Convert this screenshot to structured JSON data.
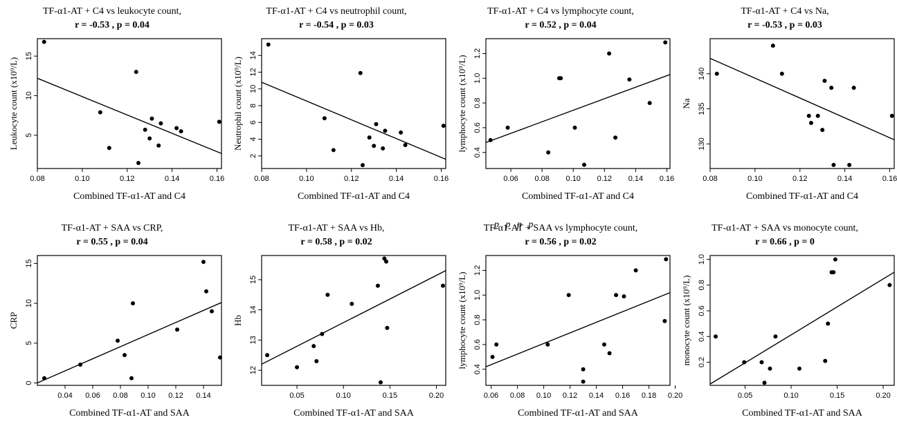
{
  "stray_text": "p p p p",
  "chart_data": [
    {
      "type": "scatter",
      "title": "TF-α1-AT + C4 vs leukocyte count,",
      "subtitle": "r = -0.53 , p = 0.04",
      "xlabel": "Combined TF-α1-AT and C4",
      "ylabel": "Leukocyte count (x10⁹/L)",
      "xlim": [
        0.08,
        0.162
      ],
      "ylim": [
        0.8,
        17.2
      ],
      "xticks": [
        0.08,
        0.1,
        0.12,
        0.14,
        0.16
      ],
      "xtick_labels": [
        "0.08",
        "0.10",
        "0.12",
        "0.14",
        "0.16"
      ],
      "yticks": [
        5,
        10,
        15
      ],
      "ytick_labels": [
        "5",
        "10",
        "15"
      ],
      "points": [
        [
          0.083,
          16.8
        ],
        [
          0.108,
          7.9
        ],
        [
          0.112,
          3.4
        ],
        [
          0.124,
          13.0
        ],
        [
          0.125,
          1.5
        ],
        [
          0.128,
          5.7
        ],
        [
          0.13,
          4.6
        ],
        [
          0.131,
          7.1
        ],
        [
          0.134,
          3.7
        ],
        [
          0.135,
          6.5
        ],
        [
          0.142,
          5.9
        ],
        [
          0.144,
          5.5
        ],
        [
          0.161,
          6.7
        ]
      ],
      "fit": [
        [
          0.08,
          12.2
        ],
        [
          0.162,
          2.7
        ]
      ]
    },
    {
      "type": "scatter",
      "title": "TF-α1-AT + C4 vs neutrophil count,",
      "subtitle": "r = -0.54 , p = 0.03",
      "xlabel": "Combined TF-α1-AT and C4",
      "ylabel": "Neutrophil count (x10⁹/L)",
      "xlim": [
        0.08,
        0.162
      ],
      "ylim": [
        0.5,
        16.0
      ],
      "xticks": [
        0.08,
        0.1,
        0.12,
        0.14,
        0.16
      ],
      "xtick_labels": [
        "0.08",
        "0.10",
        "0.12",
        "0.14",
        "0.16"
      ],
      "yticks": [
        2,
        4,
        6,
        8,
        10,
        12,
        14
      ],
      "ytick_labels": [
        "2",
        "4",
        "6",
        "8",
        "10",
        "12",
        "14"
      ],
      "points": [
        [
          0.083,
          15.3
        ],
        [
          0.108,
          6.5
        ],
        [
          0.112,
          2.7
        ],
        [
          0.124,
          11.9
        ],
        [
          0.125,
          0.9
        ],
        [
          0.128,
          4.2
        ],
        [
          0.13,
          3.2
        ],
        [
          0.131,
          5.8
        ],
        [
          0.134,
          2.9
        ],
        [
          0.135,
          5.0
        ],
        [
          0.142,
          4.8
        ],
        [
          0.144,
          3.3
        ],
        [
          0.161,
          5.6
        ]
      ],
      "fit": [
        [
          0.08,
          10.8
        ],
        [
          0.162,
          1.6
        ]
      ]
    },
    {
      "type": "scatter",
      "title": "TF-α1-AT + C4 vs lymphocyte count,",
      "subtitle": "r = 0.52 , p = 0.04",
      "xlabel": "Combined TF-α1-AT and C4",
      "ylabel": "lymphocyte count (x10⁹/L)",
      "xlim": [
        0.044,
        0.162
      ],
      "ylim": [
        0.27,
        1.32
      ],
      "xticks": [
        0.06,
        0.08,
        0.1,
        0.12,
        0.14,
        0.16
      ],
      "xtick_labels": [
        "0.06",
        "0.08",
        "0.10",
        "0.12",
        "0.14",
        "0.16"
      ],
      "yticks": [
        0.4,
        0.6,
        0.8,
        1.0,
        1.2
      ],
      "ytick_labels": [
        "0.4",
        "0.6",
        "0.8",
        "1.0",
        "1.2"
      ],
      "points": [
        [
          0.047,
          0.5
        ],
        [
          0.058,
          0.6
        ],
        [
          0.084,
          0.4
        ],
        [
          0.091,
          1.0
        ],
        [
          0.092,
          1.0
        ],
        [
          0.101,
          0.6
        ],
        [
          0.107,
          0.3
        ],
        [
          0.123,
          1.2
        ],
        [
          0.127,
          0.52
        ],
        [
          0.136,
          0.99
        ],
        [
          0.149,
          0.8
        ],
        [
          0.159,
          1.29
        ]
      ],
      "fit": [
        [
          0.044,
          0.48
        ],
        [
          0.162,
          1.03
        ]
      ]
    },
    {
      "type": "scatter",
      "title": "TF-α1-AT + C4 vs Na,",
      "subtitle": "r = -0.53 , p = 0.03",
      "xlabel": "Combined TF-α1-AT and C4",
      "ylabel": "Na",
      "xlim": [
        0.08,
        0.162
      ],
      "ylim": [
        126.5,
        145.0
      ],
      "xticks": [
        0.08,
        0.1,
        0.12,
        0.14,
        0.16
      ],
      "xtick_labels": [
        "0.08",
        "0.10",
        "0.12",
        "0.14",
        "0.16"
      ],
      "yticks": [
        130,
        135,
        140
      ],
      "ytick_labels": [
        "130",
        "135",
        "140"
      ],
      "points": [
        [
          0.083,
          140
        ],
        [
          0.108,
          144
        ],
        [
          0.112,
          140
        ],
        [
          0.124,
          134
        ],
        [
          0.125,
          133
        ],
        [
          0.128,
          134
        ],
        [
          0.13,
          132
        ],
        [
          0.131,
          139
        ],
        [
          0.134,
          138
        ],
        [
          0.135,
          127
        ],
        [
          0.142,
          127
        ],
        [
          0.144,
          138
        ],
        [
          0.161,
          134
        ]
      ],
      "fit": [
        [
          0.08,
          142.2
        ],
        [
          0.162,
          130.6
        ]
      ]
    },
    {
      "type": "scatter",
      "title": "TF-α1-AT + SAA vs CRP,",
      "subtitle": "r = 0.55 , p = 0.04",
      "xlabel": "Combined TF-α1-AT and SAA",
      "ylabel": "CRP",
      "xlim": [
        0.02,
        0.153
      ],
      "ylim": [
        -0.3,
        16.0
      ],
      "xticks": [
        0.04,
        0.06,
        0.08,
        0.1,
        0.12,
        0.14
      ],
      "xtick_labels": [
        "0.04",
        "0.06",
        "0.08",
        "0.10",
        "0.12",
        "0.14"
      ],
      "yticks": [
        0,
        5,
        10,
        15
      ],
      "ytick_labels": [
        "0",
        "5",
        "10",
        "15"
      ],
      "points": [
        [
          0.025,
          0.6
        ],
        [
          0.051,
          2.3
        ],
        [
          0.078,
          5.3
        ],
        [
          0.083,
          3.5
        ],
        [
          0.088,
          0.6
        ],
        [
          0.089,
          10.0
        ],
        [
          0.121,
          6.7
        ],
        [
          0.14,
          15.2
        ],
        [
          0.142,
          11.5
        ],
        [
          0.146,
          9.0
        ],
        [
          0.152,
          3.2
        ]
      ],
      "fit": [
        [
          0.02,
          0.0
        ],
        [
          0.153,
          10.1
        ]
      ]
    },
    {
      "type": "scatter",
      "title": "TF-α1-AT + SAA vs Hb,",
      "subtitle": "r = 0.58 , p = 0.02",
      "xlabel": "Combined TF-α1-AT and SAA",
      "ylabel": "Hb",
      "xlim": [
        0.012,
        0.21
      ],
      "ylim": [
        11.5,
        15.8
      ],
      "xticks": [
        0.05,
        0.1,
        0.15,
        0.2
      ],
      "xtick_labels": [
        "0.05",
        "0.10",
        "0.15",
        "0.20"
      ],
      "yticks": [
        12,
        13,
        14,
        15
      ],
      "ytick_labels": [
        "12",
        "13",
        "14",
        "15"
      ],
      "points": [
        [
          0.018,
          12.5
        ],
        [
          0.05,
          12.1
        ],
        [
          0.068,
          12.8
        ],
        [
          0.071,
          12.3
        ],
        [
          0.077,
          13.2
        ],
        [
          0.083,
          14.5
        ],
        [
          0.109,
          14.2
        ],
        [
          0.137,
          14.8
        ],
        [
          0.14,
          11.6
        ],
        [
          0.144,
          15.7
        ],
        [
          0.146,
          15.6
        ],
        [
          0.147,
          13.4
        ],
        [
          0.207,
          14.8
        ]
      ],
      "fit": [
        [
          0.012,
          12.2
        ],
        [
          0.21,
          15.3
        ]
      ]
    },
    {
      "type": "scatter",
      "title": "TF-α1-AT + SAA vs lymphocyte count,",
      "subtitle": "r = 0.56 , p = 0.02",
      "xlabel": "Combined TF-α1-AT and SAA",
      "ylabel": "lymphocyte count (x10⁹/L)",
      "xlim": [
        0.056,
        0.196
      ],
      "ylim": [
        0.27,
        1.32
      ],
      "xticks": [
        0.06,
        0.08,
        0.1,
        0.12,
        0.14,
        0.16,
        0.18,
        0.2
      ],
      "xtick_labels": [
        "0.06",
        "0.08",
        "0.10",
        "0.12",
        "0.14",
        "0.16",
        "0.18",
        "0.20"
      ],
      "yticks": [
        0.4,
        0.6,
        0.8,
        1.0,
        1.2
      ],
      "ytick_labels": [
        "0.4",
        "0.6",
        "0.8",
        "1.0",
        "1.2"
      ],
      "points": [
        [
          0.061,
          0.5
        ],
        [
          0.064,
          0.6
        ],
        [
          0.103,
          0.6
        ],
        [
          0.119,
          1.0
        ],
        [
          0.13,
          0.4
        ],
        [
          0.13,
          0.3
        ],
        [
          0.146,
          0.6
        ],
        [
          0.15,
          0.53
        ],
        [
          0.155,
          1.0
        ],
        [
          0.161,
          0.99
        ],
        [
          0.17,
          1.2
        ],
        [
          0.192,
          0.79
        ],
        [
          0.193,
          1.29
        ]
      ],
      "fit": [
        [
          0.056,
          0.42
        ],
        [
          0.196,
          1.02
        ]
      ]
    },
    {
      "type": "scatter",
      "title": "TF-α1-AT + SAA vs monocyte count,",
      "subtitle": "r = 0.66 , p = 0",
      "xlabel": "Combined TF-α1-AT and SAA",
      "ylabel": "monocyte count (x10⁹/L)",
      "xlim": [
        0.012,
        0.212
      ],
      "ylim": [
        0.02,
        1.03
      ],
      "xticks": [
        0.05,
        0.1,
        0.15,
        0.2
      ],
      "xtick_labels": [
        "0.05",
        "0.10",
        "0.15",
        "0.20"
      ],
      "yticks": [
        0.2,
        0.4,
        0.6,
        0.8,
        1.0
      ],
      "ytick_labels": [
        "0.2",
        "0.4",
        "0.6",
        "0.8",
        "1.0"
      ],
      "points": [
        [
          0.018,
          0.4
        ],
        [
          0.049,
          0.2
        ],
        [
          0.068,
          0.2
        ],
        [
          0.071,
          0.04
        ],
        [
          0.077,
          0.15
        ],
        [
          0.083,
          0.4
        ],
        [
          0.109,
          0.15
        ],
        [
          0.137,
          0.21
        ],
        [
          0.14,
          0.5
        ],
        [
          0.144,
          0.9
        ],
        [
          0.146,
          0.9
        ],
        [
          0.148,
          1.0
        ],
        [
          0.207,
          0.8
        ]
      ],
      "fit": [
        [
          0.012,
          0.03
        ],
        [
          0.212,
          0.9
        ]
      ]
    }
  ]
}
